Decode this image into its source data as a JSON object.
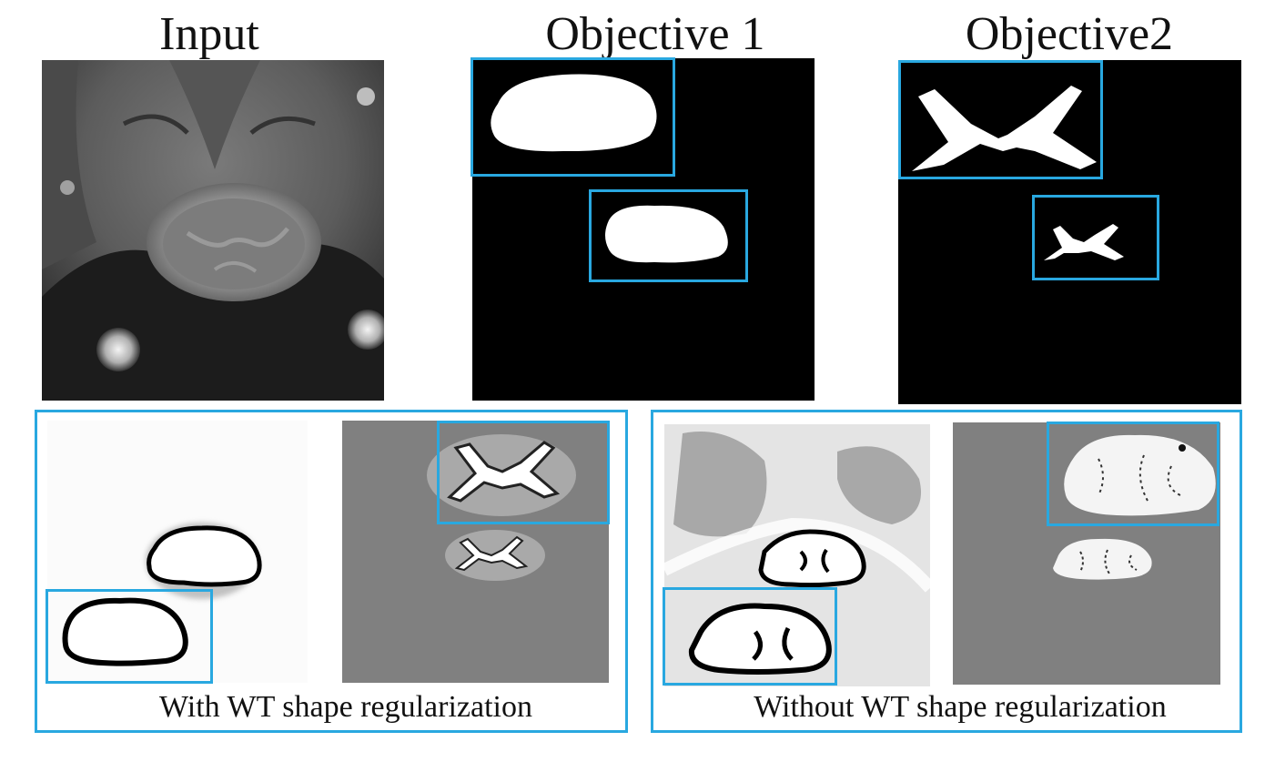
{
  "figure": {
    "titles": {
      "input": "Input",
      "objective1": "Objective 1",
      "objective2": "Objective2"
    },
    "captions": {
      "with_reg": "With WT shape regularization",
      "without_reg": "Without WT shape regularization"
    },
    "colors": {
      "highlight_box": "#29a8e0",
      "mask_background": "#000000",
      "mask_foreground": "#ffffff",
      "difference_background": "#808080"
    }
  }
}
